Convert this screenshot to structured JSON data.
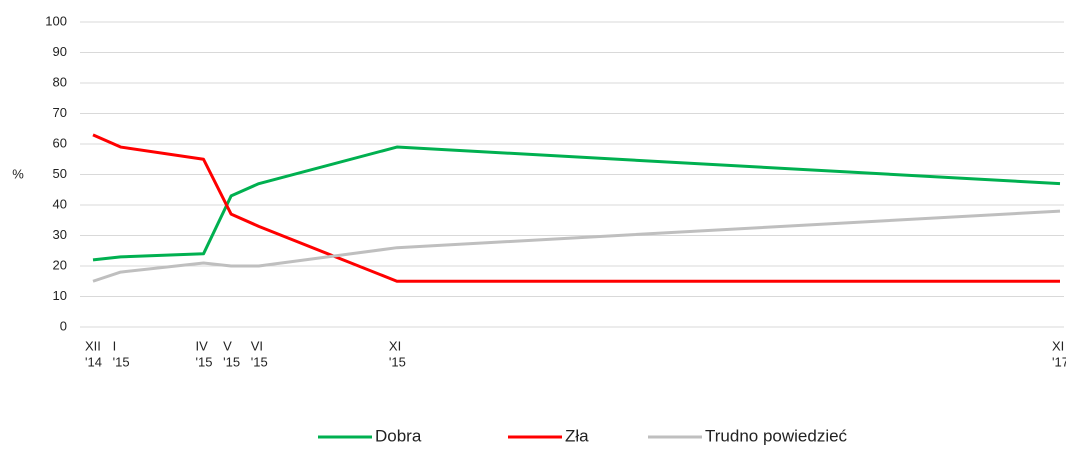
{
  "chart_data": {
    "type": "line",
    "y_label": "%",
    "x": [
      "2014-12",
      "2015-01",
      "2015-04",
      "2015-05",
      "2015-06",
      "2015-11",
      "2017-11"
    ],
    "xlim": [
      "2014-12",
      "2017-11"
    ],
    "xticks": [
      {
        "value": "2014-12",
        "label": [
          "XII",
          "'14"
        ]
      },
      {
        "value": "2015-01",
        "label": [
          "I",
          "'15"
        ]
      },
      {
        "value": "2015-04",
        "label": [
          "IV",
          "'15"
        ]
      },
      {
        "value": "2015-05",
        "label": [
          "V",
          "'15"
        ]
      },
      {
        "value": "2015-06",
        "label": [
          "VI",
          "'15"
        ]
      },
      {
        "value": "2015-11",
        "label": [
          "XI",
          "'15"
        ]
      },
      {
        "value": "2017-11",
        "label": [
          "XI",
          "'17"
        ]
      }
    ],
    "ylim": [
      0,
      100
    ],
    "yticks": [
      0,
      10,
      20,
      30,
      40,
      50,
      60,
      70,
      80,
      90,
      100
    ],
    "grid": true,
    "legend": "bottom",
    "series": [
      {
        "name": "Dobra",
        "color": "#00b050",
        "values": [
          22,
          23,
          24,
          43,
          47,
          59,
          47
        ]
      },
      {
        "name": "Zła",
        "color": "#ff0000",
        "values": [
          63,
          59,
          55,
          37,
          33,
          15,
          15
        ]
      },
      {
        "name": "Trudno powiedzieć",
        "color": "#bfbfbf",
        "values": [
          15,
          18,
          21,
          20,
          20,
          26,
          38
        ]
      }
    ]
  }
}
